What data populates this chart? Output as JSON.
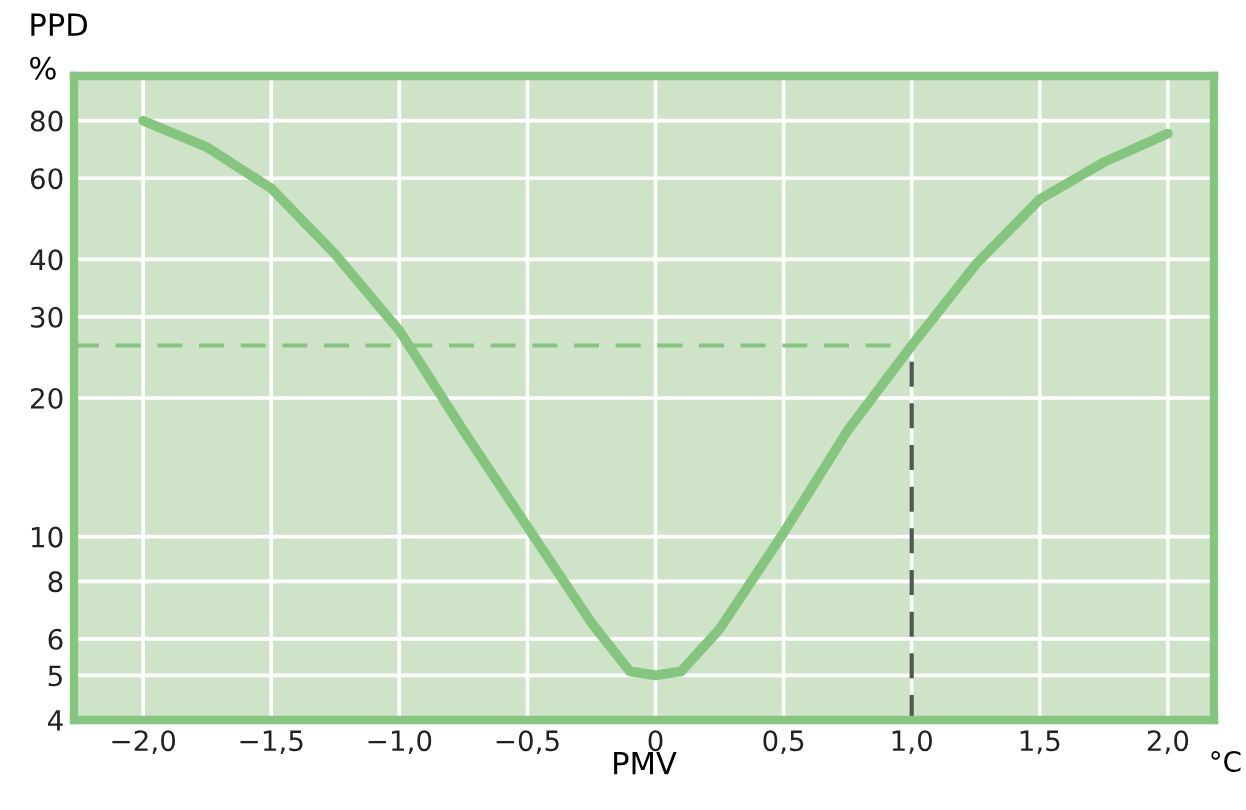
{
  "chart_data": {
    "type": "line",
    "xlabel": "PMV",
    "ylabel": "PPD\n%",
    "annotations": [
      "°C"
    ],
    "x": [
      -2.0,
      -1.75,
      -1.5,
      -1.25,
      -1.0,
      -0.75,
      -0.5,
      -0.25,
      -0.1,
      0.0,
      0.1,
      0.25,
      0.5,
      0.75,
      1.0,
      1.25,
      1.5,
      1.75,
      2.0
    ],
    "series": [
      {
        "color": "#86c57f",
        "values": [
          80,
          70,
          57,
          41,
          28,
          17,
          10.5,
          6.5,
          5.1,
          5,
          5.1,
          6.3,
          10.2,
          17,
          26,
          39,
          54,
          65,
          75
        ]
      }
    ],
    "log": true,
    "xlim": [
      -2.27,
      2.18
    ],
    "ylim": [
      4,
      100
    ],
    "xticks": [
      {
        "value": -2.0,
        "label": "−2,0"
      },
      {
        "value": -1.5,
        "label": "−1,5"
      },
      {
        "value": -1.0,
        "label": "−1,0"
      },
      {
        "value": -0.5,
        "label": "−0,5"
      },
      {
        "value": 0,
        "label": "0"
      },
      {
        "value": 0.5,
        "label": "0,5"
      },
      {
        "value": 1.0,
        "label": "1,0"
      },
      {
        "value": 1.5,
        "label": "1,5"
      },
      {
        "value": 2.0,
        "label": "2,0"
      }
    ],
    "yticks": [
      4,
      5,
      6,
      8,
      10,
      20,
      30,
      40,
      60,
      80
    ],
    "grid": true,
    "marker": "none",
    "line_style": "solid",
    "ref_lines": [
      {
        "axis": "y",
        "value": 26,
        "color": "#86c57f",
        "line_style": "dashed"
      },
      {
        "axis": "x",
        "value": 1.0,
        "color": "#555555",
        "line_style": "dashed"
      }
    ]
  }
}
